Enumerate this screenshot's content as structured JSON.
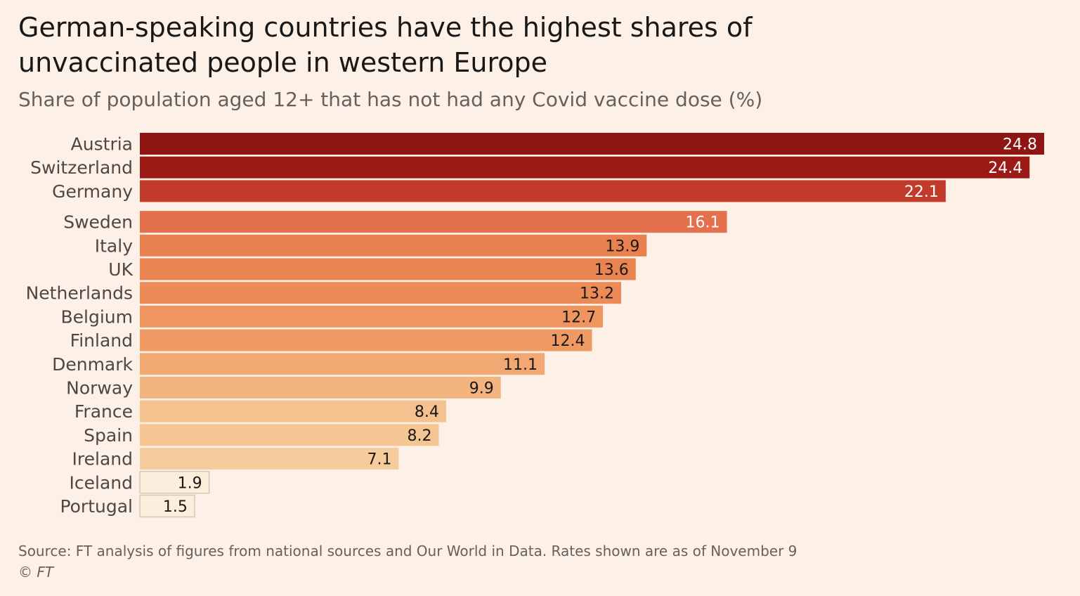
{
  "header": {
    "title": "German-speaking countries have the highest shares of unvaccinated people in western Europe",
    "subtitle": "Share of population aged 12+ that has not had any Covid vaccine dose (%)"
  },
  "footer": {
    "source": "Source: FT analysis of figures from national sources and Our World in Data. Rates shown are as of November 9",
    "credit": "© FT"
  },
  "chart_data": {
    "type": "bar",
    "orientation": "horizontal",
    "title": "German-speaking countries have the highest shares of unvaccinated people in western Europe",
    "subtitle": "Share of population aged 12+ that has not had any Covid vaccine dose (%)",
    "xlim": [
      0,
      24.8
    ],
    "grid": false,
    "legend": "none",
    "categories": [
      "Austria",
      "Switzerland",
      "Germany",
      "Sweden",
      "Italy",
      "UK",
      "Netherlands",
      "Belgium",
      "Finland",
      "Denmark",
      "Norway",
      "France",
      "Spain",
      "Ireland",
      "Iceland",
      "Portugal"
    ],
    "values": [
      24.8,
      24.4,
      22.1,
      16.1,
      13.9,
      13.6,
      13.2,
      12.7,
      12.4,
      11.1,
      9.9,
      8.4,
      8.2,
      7.1,
      1.9,
      1.5
    ],
    "value_labels": [
      "24.8",
      "24.4",
      "22.1",
      "16.1",
      "13.9",
      "13.6",
      "13.2",
      "12.7",
      "12.4",
      "11.1",
      "9.9",
      "8.4",
      "8.2",
      "7.1",
      "1.9",
      "1.5"
    ],
    "groups": [
      "German-speaking",
      "German-speaking",
      "German-speaking",
      "other",
      "other",
      "other",
      "other",
      "other",
      "other",
      "other",
      "other",
      "other",
      "other",
      "other",
      "other",
      "other"
    ],
    "colors": [
      "#8e1512",
      "#9b1a16",
      "#c23b2a",
      "#e4704d",
      "#e9804f",
      "#ea8352",
      "#ec8b57",
      "#ee9560",
      "#ef9a63",
      "#f1a873",
      "#f3b57f",
      "#f4c28f",
      "#f5c593",
      "#f7cc9d",
      "#fbeedc",
      "#fbeedc"
    ],
    "label_colors": [
      "#ffffff",
      "#ffffff",
      "#ffffff",
      "#ffffff",
      "#1a1817",
      "#1a1817",
      "#1a1817",
      "#1a1817",
      "#1a1817",
      "#1a1817",
      "#1a1817",
      "#1a1817",
      "#1a1817",
      "#1a1817",
      "#1a1817",
      "#1a1817"
    ],
    "outline_color": "#d9c7b6"
  }
}
